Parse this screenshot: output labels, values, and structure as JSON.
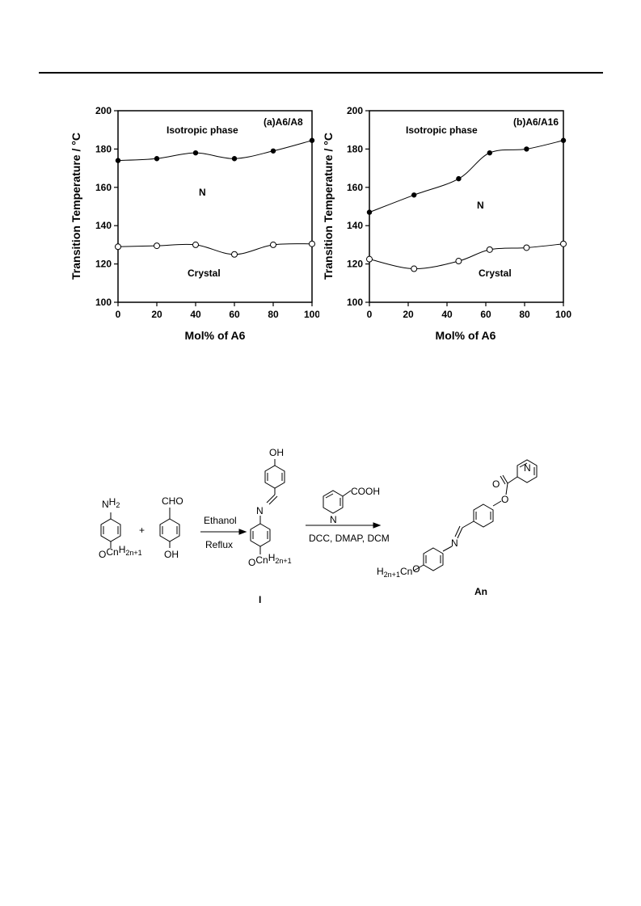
{
  "chart_data": [
    {
      "type": "scatter",
      "title": "(a)A6/A8",
      "xlabel": "Mol% of A6",
      "ylabel": "Transition Temperature / °C",
      "xlim": [
        0,
        100
      ],
      "ylim": [
        100,
        200
      ],
      "x_ticks": [
        "0",
        "20",
        "40",
        "60",
        "80",
        "100"
      ],
      "y_ticks": [
        "100",
        "120",
        "140",
        "160",
        "180",
        "200"
      ],
      "grid": false,
      "regions": [
        "Isotropic phase",
        "N",
        "Crystal"
      ],
      "series": [
        {
          "marker": "filled-circle",
          "x": [
            0,
            20,
            40,
            60,
            80,
            100
          ],
          "y": [
            174,
            175,
            178,
            175,
            179,
            184.5
          ]
        },
        {
          "marker": "open-circle",
          "x": [
            0,
            20,
            40,
            60,
            80,
            100
          ],
          "y": [
            129,
            129.5,
            130,
            125,
            130,
            130.5
          ]
        }
      ]
    },
    {
      "type": "scatter",
      "title": "(b)A6/A16",
      "xlabel": "Mol% of A6",
      "ylabel": "Transition Temperature / °C",
      "xlim": [
        0,
        100
      ],
      "ylim": [
        100,
        200
      ],
      "x_ticks": [
        "0",
        "20",
        "40",
        "60",
        "80",
        "100"
      ],
      "y_ticks": [
        "100",
        "120",
        "140",
        "160",
        "180",
        "200"
      ],
      "grid": false,
      "regions": [
        "Isotropic phase",
        "N",
        "Crystal"
      ],
      "series": [
        {
          "marker": "filled-circle",
          "x": [
            0,
            23,
            46,
            62,
            81,
            100
          ],
          "y": [
            147,
            156,
            164.5,
            178,
            180,
            184.5
          ]
        },
        {
          "marker": "open-circle",
          "x": [
            0,
            23,
            46,
            62,
            81,
            100
          ],
          "y": [
            122.5,
            117.5,
            121.5,
            127.5,
            128.5,
            130.5
          ]
        }
      ]
    }
  ],
  "scheme": {
    "reactant1_top": "NH2",
    "reactant1_bottom": "OCnH2n+1",
    "plus": "+",
    "reactant2_top": "CHO",
    "reactant2_bottom": "OH",
    "step1_top": "Ethanol",
    "step1_bottom": "Reflux",
    "intermediate_top": "OH",
    "intermediate_n": "N",
    "intermediate_bottom": "OCnH2n+1",
    "intermediate_label": "I",
    "reagent_acid": "COOH",
    "reagent_n": "N",
    "step2_bottom": "DCC, DMAP, DCM",
    "product_n_ring": "N",
    "product_o": "O",
    "product_o2": "O",
    "product_imine_n": "N",
    "product_tail": "H2n+1CnO",
    "product_label": "An"
  }
}
